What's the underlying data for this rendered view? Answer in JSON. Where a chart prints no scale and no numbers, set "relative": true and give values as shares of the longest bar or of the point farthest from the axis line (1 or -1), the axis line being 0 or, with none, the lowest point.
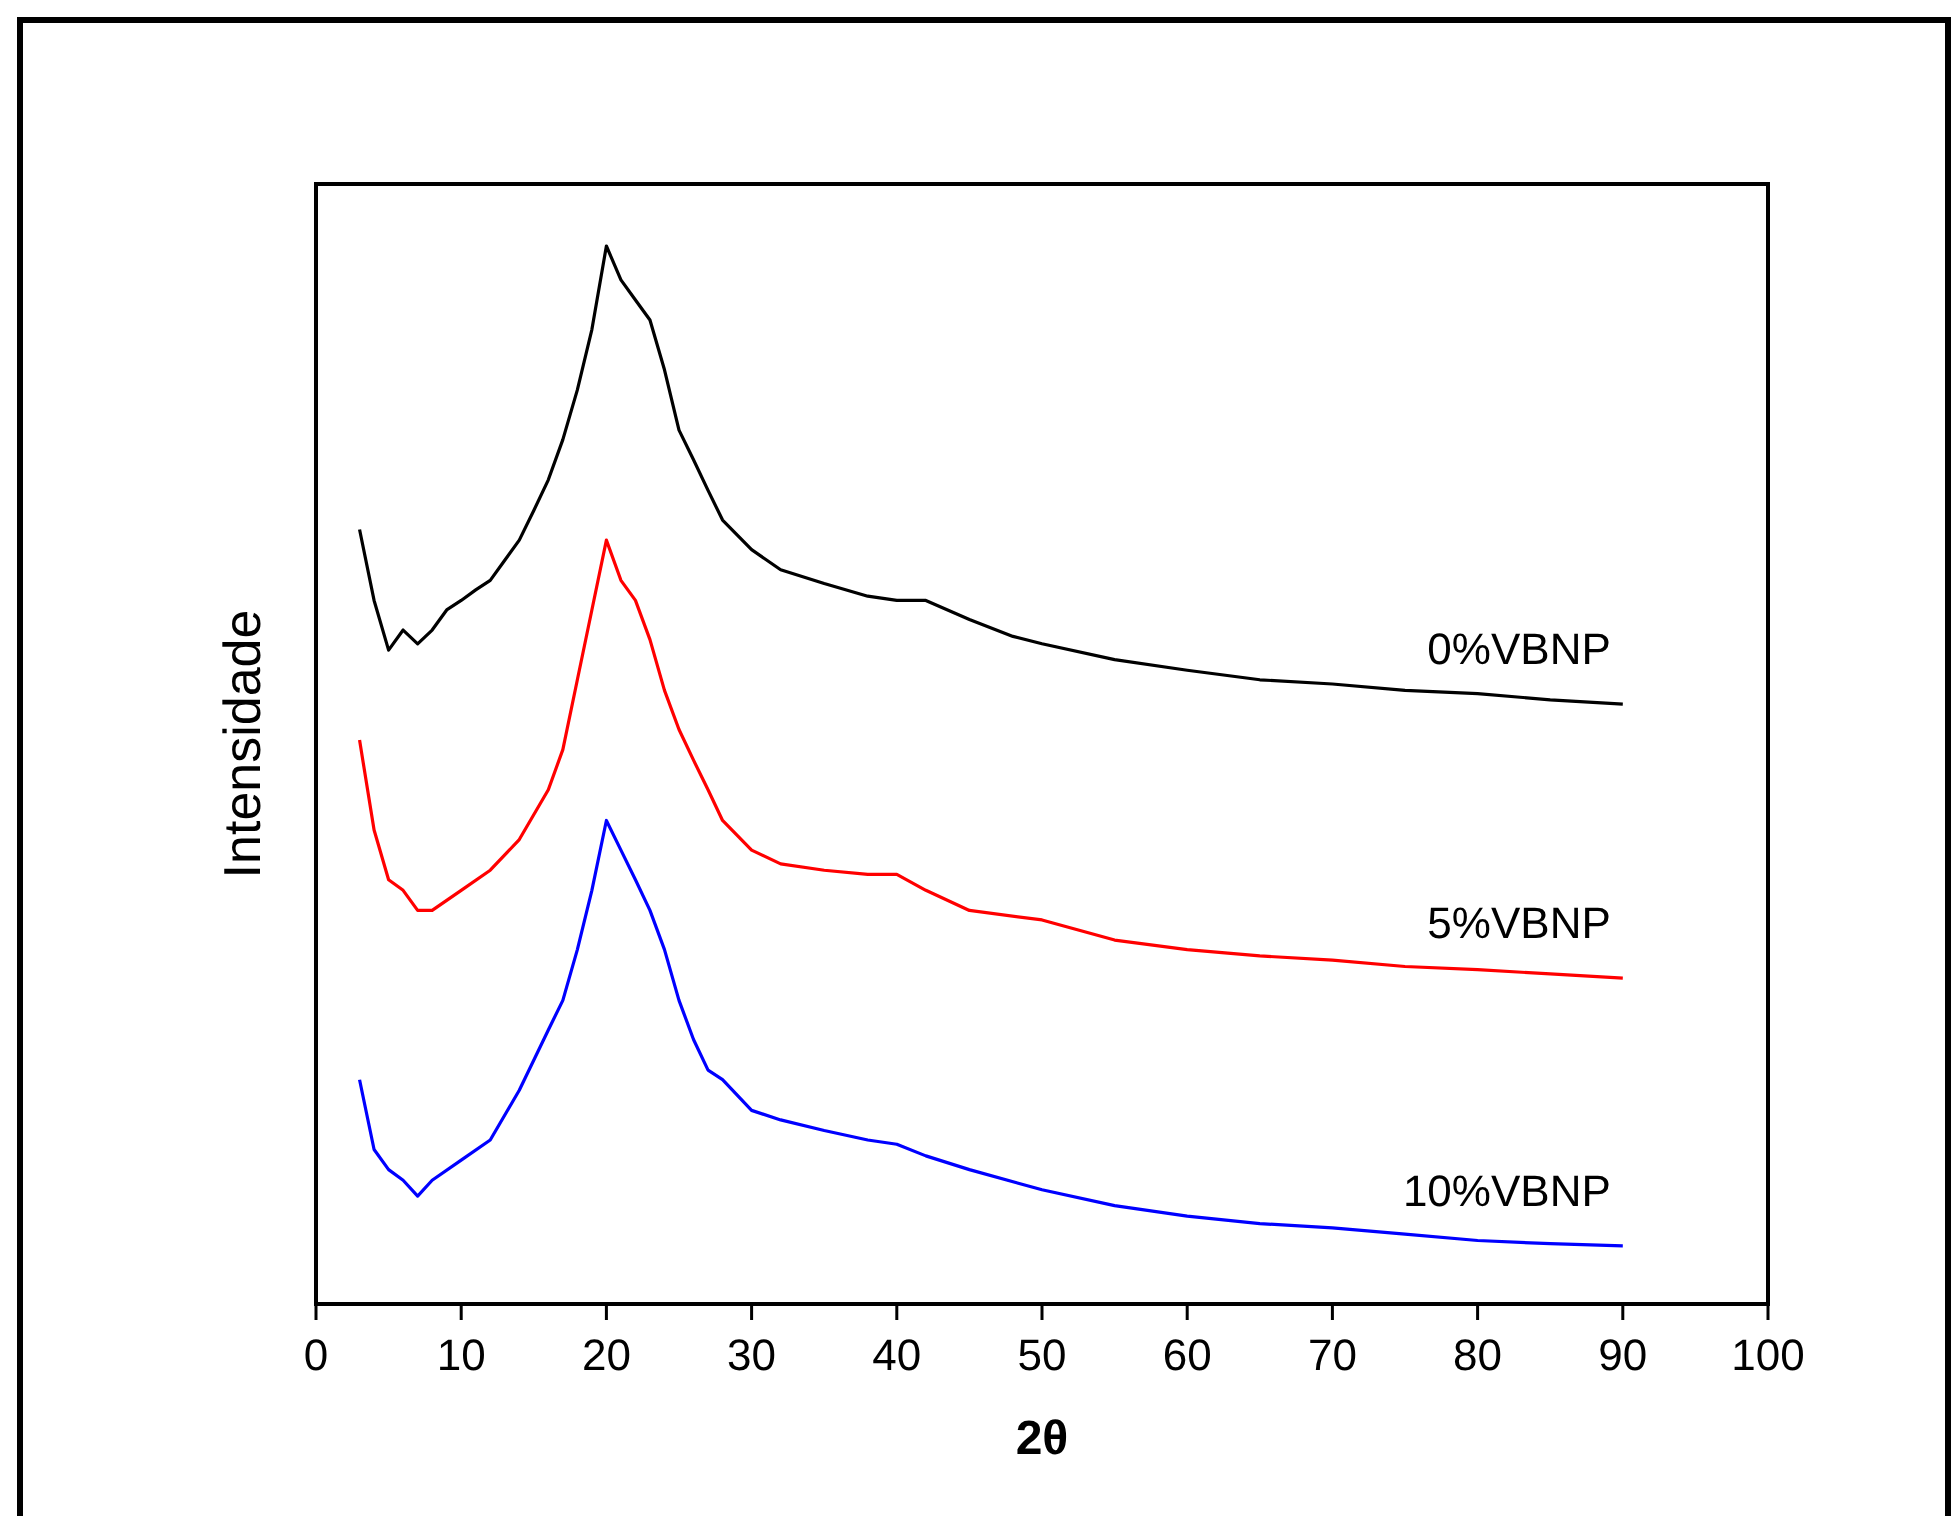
{
  "chart_data": {
    "type": "line",
    "relative": true,
    "xlabel": "2θ",
    "ylabel": "Intensidade",
    "xlim": [
      0,
      100
    ],
    "xticks": [
      0,
      10,
      20,
      30,
      40,
      50,
      60,
      70,
      80,
      90,
      100
    ],
    "grid": false,
    "series": [
      {
        "name": "0%VBNP",
        "color": "#000000",
        "x": [
          3,
          4,
          5,
          6,
          7,
          8,
          9,
          10,
          11,
          12,
          13,
          14,
          15,
          16,
          17,
          18,
          19,
          20,
          21,
          22,
          23,
          24,
          25,
          26,
          27,
          28,
          30,
          32,
          35,
          38,
          40,
          42,
          45,
          48,
          50,
          55,
          60,
          65,
          70,
          75,
          80,
          85,
          90
        ],
        "values": [
          0.732,
          0.665,
          0.618,
          0.637,
          0.624,
          0.637,
          0.656,
          0.665,
          0.675,
          0.684,
          0.703,
          0.722,
          0.75,
          0.779,
          0.817,
          0.864,
          0.921,
          1,
          0.968,
          0.949,
          0.93,
          0.883,
          0.826,
          0.798,
          0.769,
          0.741,
          0.713,
          0.694,
          0.681,
          0.669,
          0.665,
          0.665,
          0.647,
          0.631,
          0.624,
          0.609,
          0.599,
          0.59,
          0.586,
          0.58,
          0.577,
          0.571,
          0.567
        ]
      },
      {
        "name": "5%VBNP",
        "color": "#ff0000",
        "x": [
          3,
          4,
          5,
          6,
          7,
          8,
          10,
          12,
          14,
          16,
          17,
          18,
          19,
          20,
          21,
          22,
          23,
          24,
          25,
          26,
          27,
          28,
          30,
          32,
          35,
          38,
          40,
          42,
          45,
          50,
          55,
          60,
          65,
          70,
          75,
          80,
          85,
          90
        ],
        "values": [
          0.533,
          0.448,
          0.401,
          0.391,
          0.372,
          0.372,
          0.391,
          0.41,
          0.439,
          0.486,
          0.524,
          0.59,
          0.656,
          0.722,
          0.684,
          0.665,
          0.628,
          0.58,
          0.543,
          0.514,
          0.486,
          0.457,
          0.429,
          0.416,
          0.41,
          0.406,
          0.406,
          0.391,
          0.372,
          0.363,
          0.344,
          0.335,
          0.329,
          0.325,
          0.319,
          0.316,
          0.312,
          0.308
        ]
      },
      {
        "name": "10%VBNP",
        "color": "#0000ff",
        "x": [
          3,
          4,
          5,
          6,
          7,
          8,
          10,
          12,
          14,
          16,
          17,
          18,
          19,
          20,
          21,
          22,
          23,
          24,
          25,
          26,
          27,
          28,
          30,
          32,
          35,
          38,
          40,
          42,
          45,
          50,
          55,
          60,
          65,
          70,
          75,
          80,
          85,
          90
        ],
        "values": [
          0.212,
          0.146,
          0.127,
          0.117,
          0.102,
          0.117,
          0.136,
          0.155,
          0.202,
          0.259,
          0.287,
          0.335,
          0.391,
          0.457,
          0.429,
          0.401,
          0.372,
          0.335,
          0.287,
          0.25,
          0.221,
          0.212,
          0.183,
          0.174,
          0.164,
          0.155,
          0.151,
          0.14,
          0.127,
          0.108,
          0.093,
          0.083,
          0.076,
          0.072,
          0.066,
          0.06,
          0.057,
          0.055
        ]
      }
    ]
  }
}
